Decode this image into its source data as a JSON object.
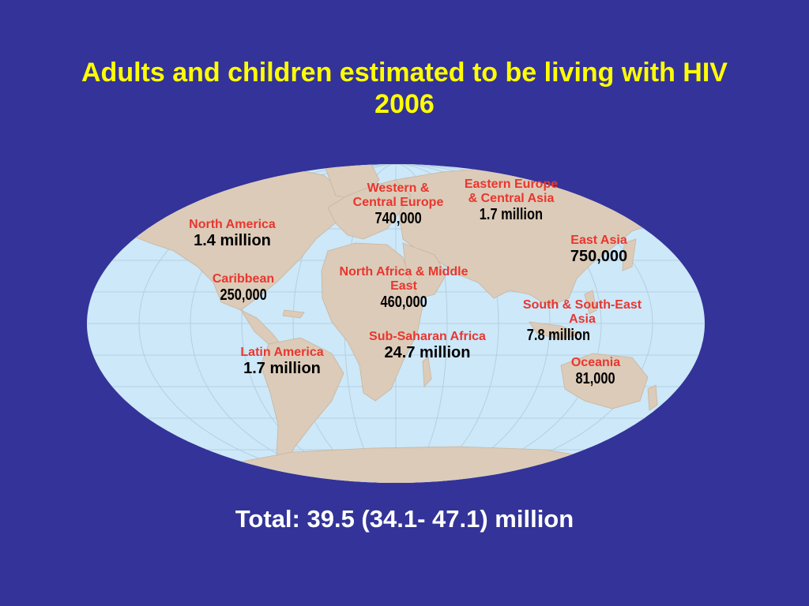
{
  "title_line1": "Adults and children estimated to be living with HIV",
  "title_line2": "2006",
  "colors": {
    "background": "#333399",
    "title": "#ffff00",
    "ocean": "#cde8f8",
    "land": "#dccbb8",
    "region_label": "#e8362f",
    "value_text": "#000000",
    "total_text": "#ffffff"
  },
  "regions": {
    "north_america": {
      "name": "North America",
      "value": "1.4 million"
    },
    "caribbean": {
      "name": "Caribbean",
      "value": "250,000"
    },
    "latin_america": {
      "name": "Latin America",
      "value": "1.7 million"
    },
    "western_central_europe": {
      "name_line1": "Western &",
      "name_line2": "Central Europe",
      "value": "740,000"
    },
    "eastern_europe_central_asia": {
      "name_line1": "Eastern Europe",
      "name_line2": "& Central Asia",
      "value": "1.7 million"
    },
    "north_africa_middle_east": {
      "name_line1": "North Africa & Middle",
      "name_line2": "East",
      "value": "460,000"
    },
    "sub_saharan_africa": {
      "name": "Sub-Saharan Africa",
      "value": "24.7 million"
    },
    "east_asia": {
      "name": "East Asia",
      "value": "750,000"
    },
    "south_southeast_asia": {
      "name_line1": "South & South-East",
      "name_line2": "Asia",
      "value": "7.8 million"
    },
    "oceania": {
      "name": "Oceania",
      "value": "81,000"
    }
  },
  "total": "Total: 39.5 (34.1- 47.1) million"
}
